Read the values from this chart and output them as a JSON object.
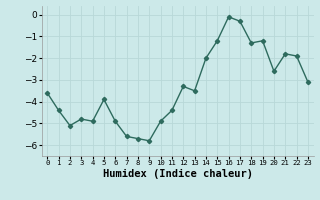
{
  "x": [
    0,
    1,
    2,
    3,
    4,
    5,
    6,
    7,
    8,
    9,
    10,
    11,
    12,
    13,
    14,
    15,
    16,
    17,
    18,
    19,
    20,
    21,
    22,
    23
  ],
  "y": [
    -3.6,
    -4.4,
    -5.1,
    -4.8,
    -4.9,
    -3.9,
    -4.9,
    -5.6,
    -5.7,
    -5.8,
    -4.9,
    -4.4,
    -3.3,
    -3.5,
    -2.0,
    -1.2,
    -0.1,
    -0.3,
    -1.3,
    -1.2,
    -2.6,
    -1.8,
    -1.9,
    -3.1
  ],
  "xlabel": "Humidex (Indice chaleur)",
  "ylim": [
    -6.5,
    0.4
  ],
  "xlim": [
    -0.5,
    23.5
  ],
  "yticks": [
    0,
    -1,
    -2,
    -3,
    -4,
    -5,
    -6
  ],
  "xtick_labels": [
    "0",
    "1",
    "2",
    "3",
    "4",
    "5",
    "6",
    "7",
    "8",
    "9",
    "10",
    "11",
    "12",
    "13",
    "14",
    "15",
    "16",
    "17",
    "18",
    "19",
    "20",
    "21",
    "22",
    "23"
  ],
  "line_color": "#2e6b5e",
  "marker": "D",
  "marker_size": 2.2,
  "bg_color": "#cce9e9",
  "grid_color": "#b8d8d8",
  "line_width": 1.0,
  "xlabel_fontsize": 7.5,
  "ytick_fontsize": 6.5,
  "xtick_fontsize": 5.2
}
